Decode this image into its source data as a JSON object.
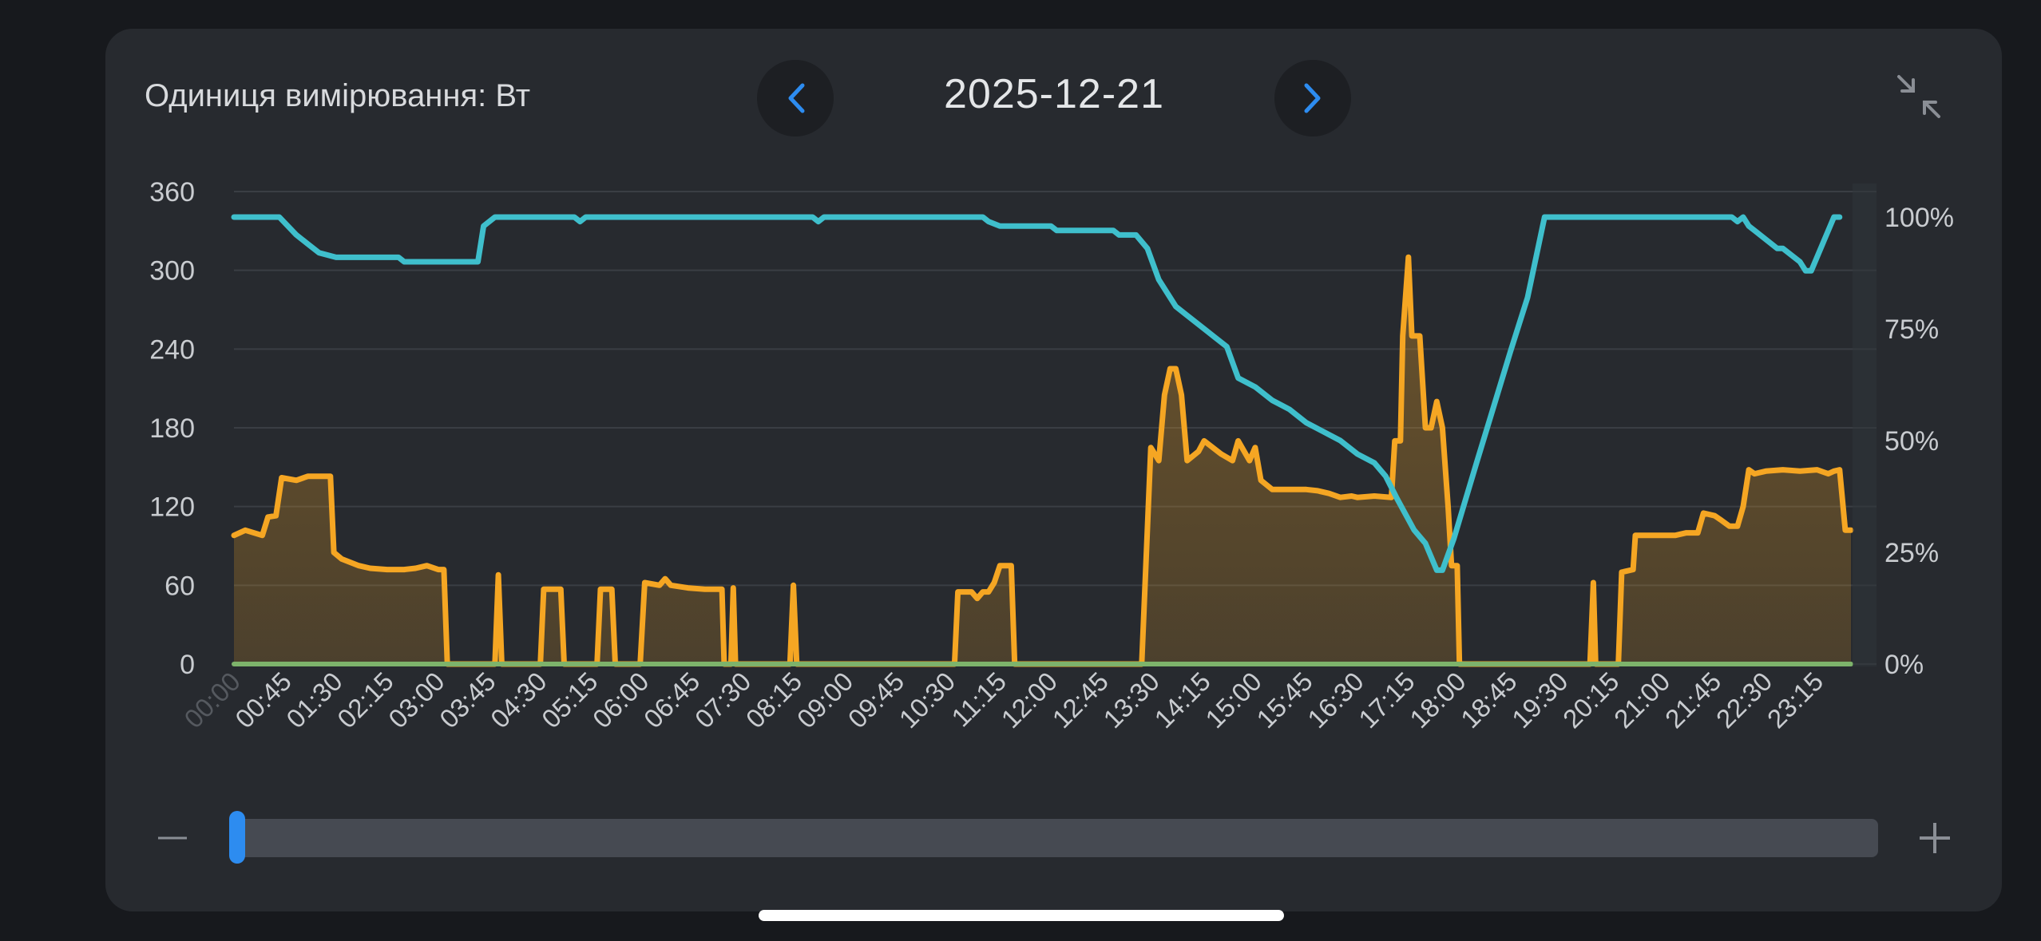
{
  "header": {
    "unit_label": "Одиниця вимірювання: Вт",
    "date": "2025-12-21"
  },
  "icons": {
    "prev": "chevron-left-icon",
    "next": "chevron-right-icon",
    "collapse": "collapse-icon",
    "zoom_out": "minus-icon",
    "zoom_in": "plus-icon"
  },
  "colors": {
    "power": "#f5a623",
    "battery": "#3fbfcc",
    "baseline": "#7db36b",
    "accent": "#2d8cf0"
  },
  "zoom": {
    "position": 0.0
  },
  "chart_data": {
    "type": "line",
    "x_ticks": [
      "00:00",
      "00:45",
      "01:30",
      "02:15",
      "03:00",
      "03:45",
      "04:30",
      "05:15",
      "06:00",
      "06:45",
      "07:30",
      "08:15",
      "09:00",
      "09:45",
      "10:30",
      "11:15",
      "12:00",
      "12:45",
      "13:30",
      "14:15",
      "15:00",
      "15:45",
      "16:30",
      "17:15",
      "18:00",
      "18:45",
      "19:30",
      "20:15",
      "21:00",
      "21:45",
      "22:30",
      "23:15"
    ],
    "y_left": {
      "ticks": [
        "0",
        "60",
        "120",
        "180",
        "240",
        "300",
        "360"
      ],
      "min": 0,
      "max": 360
    },
    "y_right": {
      "ticks": [
        "0%",
        "25%",
        "50%",
        "75%",
        "100%"
      ],
      "min": 0,
      "max": 100
    },
    "grid": true,
    "series": [
      {
        "axis": "left",
        "area": true,
        "points": [
          [
            "00:00",
            98
          ],
          [
            "00:10",
            102
          ],
          [
            "00:25",
            98
          ],
          [
            "00:30",
            112
          ],
          [
            "00:37",
            113
          ],
          [
            "00:42",
            142
          ],
          [
            "00:55",
            140
          ],
          [
            "01:05",
            143
          ],
          [
            "01:15",
            143
          ],
          [
            "01:25",
            143
          ],
          [
            "01:28",
            85
          ],
          [
            "01:35",
            80
          ],
          [
            "01:50",
            75
          ],
          [
            "02:00",
            73
          ],
          [
            "02:15",
            72
          ],
          [
            "02:30",
            72
          ],
          [
            "02:40",
            73
          ],
          [
            "02:50",
            75
          ],
          [
            "03:00",
            72
          ],
          [
            "03:05",
            72
          ],
          [
            "03:08",
            0
          ],
          [
            "03:50",
            0
          ],
          [
            "03:53",
            68
          ],
          [
            "03:56",
            0
          ],
          [
            "04:30",
            0
          ],
          [
            "04:33",
            57
          ],
          [
            "04:48",
            57
          ],
          [
            "04:51",
            0
          ],
          [
            "05:20",
            0
          ],
          [
            "05:23",
            57
          ],
          [
            "05:33",
            57
          ],
          [
            "05:36",
            0
          ],
          [
            "05:58",
            0
          ],
          [
            "06:02",
            62
          ],
          [
            "06:15",
            60
          ],
          [
            "06:20",
            65
          ],
          [
            "06:25",
            60
          ],
          [
            "06:40",
            58
          ],
          [
            "06:55",
            57
          ],
          [
            "07:10",
            57
          ],
          [
            "07:12",
            0
          ],
          [
            "07:18",
            0
          ],
          [
            "07:20",
            58
          ],
          [
            "07:22",
            0
          ],
          [
            "08:10",
            0
          ],
          [
            "08:13",
            60
          ],
          [
            "08:16",
            0
          ],
          [
            "10:35",
            0
          ],
          [
            "10:38",
            55
          ],
          [
            "10:50",
            55
          ],
          [
            "10:55",
            50
          ],
          [
            "11:00",
            55
          ],
          [
            "11:05",
            55
          ],
          [
            "11:10",
            62
          ],
          [
            "11:15",
            75
          ],
          [
            "11:25",
            75
          ],
          [
            "11:28",
            0
          ],
          [
            "13:20",
            0
          ],
          [
            "13:28",
            165
          ],
          [
            "13:35",
            155
          ],
          [
            "13:40",
            205
          ],
          [
            "13:45",
            225
          ],
          [
            "13:50",
            225
          ],
          [
            "13:55",
            205
          ],
          [
            "14:00",
            155
          ],
          [
            "14:10",
            162
          ],
          [
            "14:15",
            170
          ],
          [
            "14:30",
            160
          ],
          [
            "14:40",
            155
          ],
          [
            "14:45",
            170
          ],
          [
            "14:55",
            155
          ],
          [
            "15:00",
            165
          ],
          [
            "15:05",
            140
          ],
          [
            "15:15",
            133
          ],
          [
            "15:30",
            133
          ],
          [
            "15:45",
            133
          ],
          [
            "15:55",
            132
          ],
          [
            "16:05",
            130
          ],
          [
            "16:15",
            127
          ],
          [
            "16:25",
            128
          ],
          [
            "16:30",
            127
          ],
          [
            "16:45",
            128
          ],
          [
            "17:00",
            127
          ],
          [
            "17:03",
            170
          ],
          [
            "17:08",
            170
          ],
          [
            "17:10",
            250
          ],
          [
            "17:15",
            310
          ],
          [
            "17:18",
            250
          ],
          [
            "17:25",
            250
          ],
          [
            "17:30",
            180
          ],
          [
            "17:35",
            180
          ],
          [
            "17:40",
            200
          ],
          [
            "17:45",
            180
          ],
          [
            "17:50",
            120
          ],
          [
            "17:53",
            75
          ],
          [
            "17:58",
            75
          ],
          [
            "18:00",
            0
          ],
          [
            "19:55",
            0
          ],
          [
            "19:58",
            62
          ],
          [
            "20:00",
            0
          ],
          [
            "20:20",
            0
          ],
          [
            "20:23",
            70
          ],
          [
            "20:33",
            72
          ],
          [
            "20:35",
            98
          ],
          [
            "20:45",
            98
          ],
          [
            "21:00",
            98
          ],
          [
            "21:10",
            98
          ],
          [
            "21:20",
            100
          ],
          [
            "21:30",
            100
          ],
          [
            "21:35",
            115
          ],
          [
            "21:45",
            113
          ],
          [
            "21:50",
            110
          ],
          [
            "21:58",
            105
          ],
          [
            "22:05",
            105
          ],
          [
            "22:10",
            120
          ],
          [
            "22:15",
            148
          ],
          [
            "22:20",
            145
          ],
          [
            "22:30",
            147
          ],
          [
            "22:45",
            148
          ],
          [
            "23:00",
            147
          ],
          [
            "23:15",
            148
          ],
          [
            "23:25",
            145
          ],
          [
            "23:30",
            147
          ],
          [
            "23:35",
            148
          ],
          [
            "23:40",
            102
          ],
          [
            "23:45",
            102
          ]
        ]
      },
      {
        "axis": "right",
        "area": false,
        "points": [
          [
            "00:00",
            100
          ],
          [
            "00:40",
            100
          ],
          [
            "00:55",
            96
          ],
          [
            "01:05",
            94
          ],
          [
            "01:15",
            92
          ],
          [
            "01:30",
            91
          ],
          [
            "02:00",
            91
          ],
          [
            "02:25",
            91
          ],
          [
            "02:30",
            90
          ],
          [
            "03:00",
            90
          ],
          [
            "03:20",
            90
          ],
          [
            "03:35",
            90
          ],
          [
            "03:40",
            98
          ],
          [
            "03:50",
            100
          ],
          [
            "04:00",
            100
          ],
          [
            "05:00",
            100
          ],
          [
            "05:05",
            99
          ],
          [
            "05:10",
            100
          ],
          [
            "06:00",
            100
          ],
          [
            "07:00",
            100
          ],
          [
            "08:00",
            100
          ],
          [
            "08:30",
            100
          ],
          [
            "08:35",
            99
          ],
          [
            "08:40",
            100
          ],
          [
            "09:30",
            100
          ],
          [
            "10:30",
            100
          ],
          [
            "11:00",
            100
          ],
          [
            "11:05",
            99
          ],
          [
            "11:15",
            98
          ],
          [
            "11:30",
            98
          ],
          [
            "12:00",
            98
          ],
          [
            "12:05",
            97
          ],
          [
            "12:30",
            97
          ],
          [
            "12:55",
            97
          ],
          [
            "13:00",
            96
          ],
          [
            "13:15",
            96
          ],
          [
            "13:25",
            93
          ],
          [
            "13:35",
            86
          ],
          [
            "13:50",
            80
          ],
          [
            "14:00",
            78
          ],
          [
            "14:15",
            75
          ],
          [
            "14:25",
            73
          ],
          [
            "14:35",
            71
          ],
          [
            "14:45",
            64
          ],
          [
            "15:00",
            62
          ],
          [
            "15:15",
            59
          ],
          [
            "15:30",
            57
          ],
          [
            "15:45",
            54
          ],
          [
            "16:00",
            52
          ],
          [
            "16:15",
            50
          ],
          [
            "16:30",
            47
          ],
          [
            "16:45",
            45
          ],
          [
            "16:55",
            42
          ],
          [
            "17:05",
            37
          ],
          [
            "17:20",
            30
          ],
          [
            "17:30",
            27
          ],
          [
            "17:40",
            21
          ],
          [
            "17:45",
            21
          ],
          [
            "17:55",
            28
          ],
          [
            "18:15",
            45
          ],
          [
            "18:45",
            70
          ],
          [
            "19:00",
            82
          ],
          [
            "19:15",
            100
          ],
          [
            "20:00",
            100
          ],
          [
            "21:00",
            100
          ],
          [
            "21:45",
            100
          ],
          [
            "22:00",
            100
          ],
          [
            "22:05",
            99
          ],
          [
            "22:10",
            100
          ],
          [
            "22:15",
            98
          ],
          [
            "22:20",
            97
          ],
          [
            "22:30",
            95
          ],
          [
            "22:40",
            93
          ],
          [
            "22:45",
            93
          ],
          [
            "23:00",
            90
          ],
          [
            "23:05",
            88
          ],
          [
            "23:10",
            88
          ],
          [
            "23:20",
            94
          ],
          [
            "23:30",
            100
          ],
          [
            "23:35",
            100
          ]
        ]
      },
      {
        "axis": "left",
        "area": false,
        "points": [
          [
            "00:00",
            0
          ],
          [
            "23:45",
            0
          ]
        ]
      }
    ]
  }
}
